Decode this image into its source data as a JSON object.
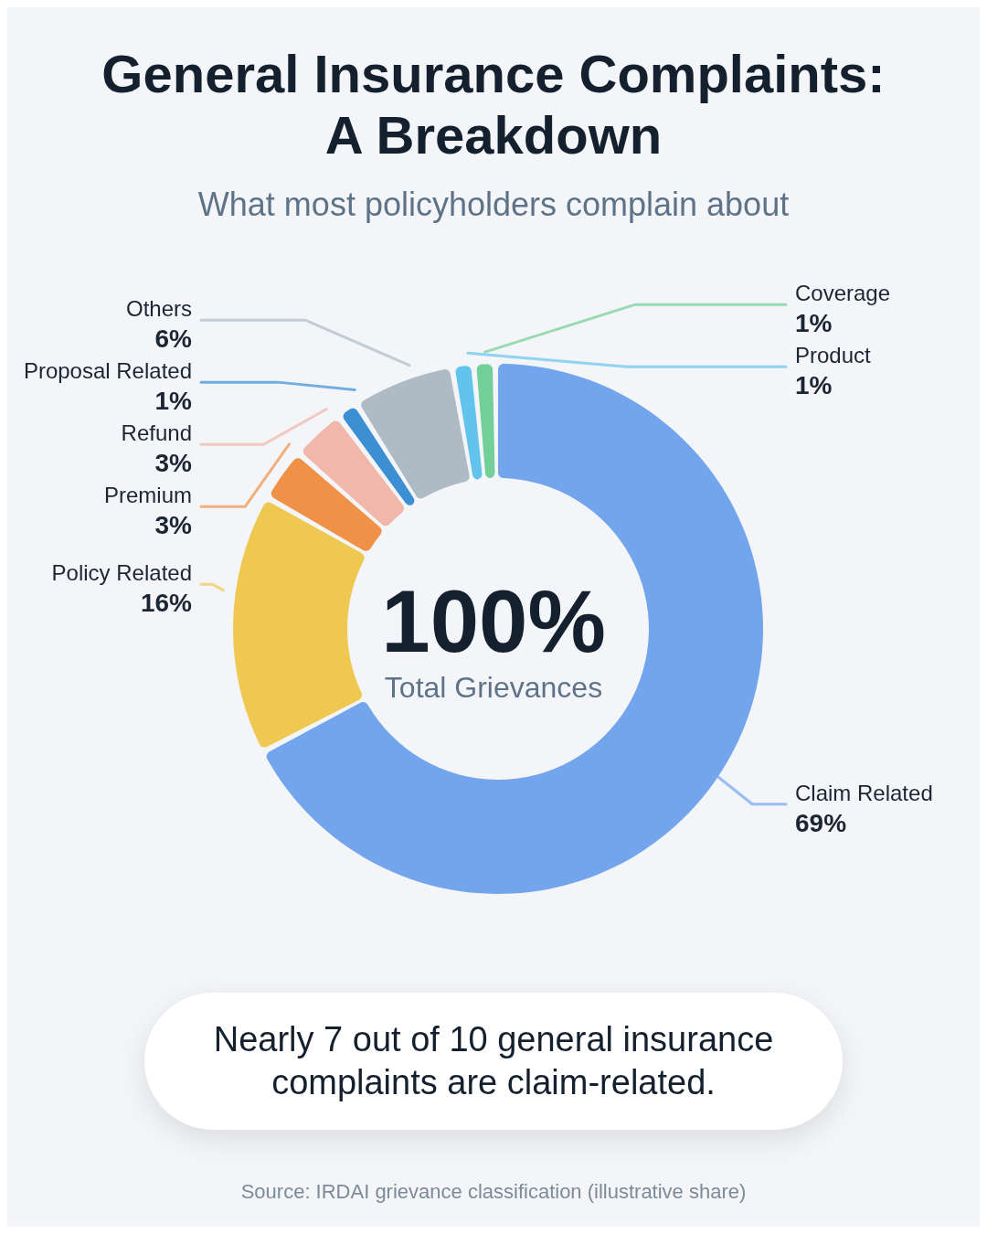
{
  "chart_data": {
    "type": "donut",
    "title": "General Insurance Complaints: A Breakdown",
    "subtitle": "What most policyholders complain about",
    "categories": [
      "Claim Related",
      "Policy Related",
      "Premium",
      "Refund",
      "Proposal Related",
      "Others",
      "Product",
      "Coverage"
    ],
    "values": [
      69,
      16,
      3,
      3,
      1,
      6,
      1,
      1
    ],
    "value_labels": [
      "69%",
      "16%",
      "3%",
      "3%",
      "1%",
      "6%",
      "1%",
      "1%"
    ],
    "colors": [
      "#72a5ec",
      "#efc851",
      "#ef9248",
      "#f1b7aa",
      "#3b8fd2",
      "#aebbc5",
      "#62c4ec",
      "#72cf98"
    ],
    "annotations": [
      "100%",
      "Total Grievances",
      "Nearly 7 out of 10 general insurance complaints are claim-related.",
      "Source: IRDAI grievance classification (illustrative share)"
    ]
  }
}
